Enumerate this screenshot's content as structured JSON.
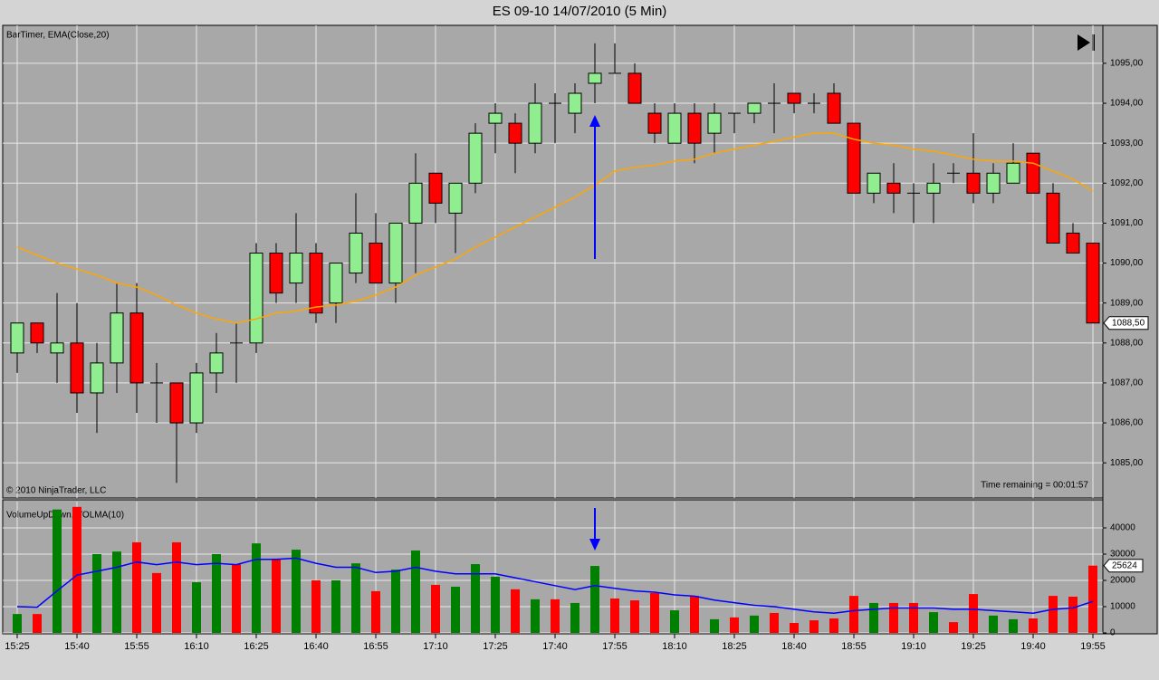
{
  "chart_data": [
    {
      "type": "candlestick",
      "title": "ES 09-10  14/07/2010 (5 Min)",
      "indicator_label": "BarTimer, EMA(Close,20)",
      "copyright": "© 2010 NinjaTrader, LLC",
      "annotation": "Time remaining = 00:01:57",
      "up_color": "#90ee90",
      "down_color": "#ff0000",
      "open": [
        1087.75,
        1088.5,
        1087.75,
        1088,
        1086.75,
        1087.5,
        1088.75,
        1087,
        1087,
        1086,
        1087.25,
        1088,
        1088,
        1090.25,
        1089.5,
        1090.25,
        1089,
        1089.75,
        1090.5,
        1089.5,
        1091,
        1092.25,
        1091.25,
        1092,
        1093.5,
        1093.5,
        1093,
        1094,
        1093.75,
        1094.5,
        1094.75,
        1094.75,
        1093.75,
        1093,
        1093.75,
        1093.25,
        1093.75,
        1093.75,
        1094,
        1094.25,
        1094,
        1094.25,
        1093.5,
        1091.75,
        1092,
        1091.75,
        1091.75,
        1092.25,
        1092.25,
        1091.75,
        1092,
        1092.75,
        1091.75,
        1090.75,
        1090.5
      ],
      "high": [
        1088.5,
        1088.5,
        1089.25,
        1089,
        1088,
        1089.5,
        1089.5,
        1087.5,
        1087,
        1087.5,
        1088.25,
        1088.5,
        1090.5,
        1090.5,
        1091.25,
        1090.5,
        1090,
        1091.75,
        1091.25,
        1091,
        1092.75,
        1092.25,
        1092,
        1093.5,
        1094,
        1093.75,
        1094.5,
        1094.25,
        1094.5,
        1095.5,
        1095.5,
        1095,
        1094,
        1094,
        1094,
        1094,
        1093.75,
        1094,
        1094.5,
        1094.25,
        1094.25,
        1094.5,
        1093.5,
        1092.25,
        1092.5,
        1092,
        1092.5,
        1092.5,
        1093.25,
        1092.5,
        1093,
        1092.75,
        1092,
        1091,
        1090.5
      ],
      "low": [
        1087.25,
        1087.75,
        1087,
        1086.25,
        1085.75,
        1086.75,
        1086.25,
        1086,
        1084.5,
        1085.75,
        1086.75,
        1087,
        1087.75,
        1089,
        1089,
        1088.5,
        1088.5,
        1089.5,
        1089.5,
        1089,
        1089.75,
        1091,
        1090.25,
        1091.75,
        1092.75,
        1092.25,
        1092.75,
        1093,
        1093.25,
        1094,
        1094.75,
        1094,
        1093,
        1093,
        1092.5,
        1092.75,
        1093.25,
        1093.5,
        1093.25,
        1093.75,
        1093.75,
        1093.5,
        1091.75,
        1091.5,
        1091.25,
        1091,
        1091,
        1092,
        1091.5,
        1091.5,
        1092,
        1091.75,
        1090.5,
        1090.25,
        1088.5
      ],
      "close": [
        1088.5,
        1088,
        1088,
        1086.75,
        1087.5,
        1088.75,
        1087,
        1087,
        1086,
        1087.25,
        1087.75,
        1088,
        1090.25,
        1089.25,
        1090.25,
        1088.75,
        1090,
        1090.75,
        1089.5,
        1091,
        1092,
        1091.5,
        1092,
        1093.25,
        1093.75,
        1093,
        1094,
        1094,
        1094.25,
        1094.75,
        1094.75,
        1094,
        1093.25,
        1093.75,
        1093,
        1093.75,
        1093.75,
        1094,
        1094,
        1094,
        1094,
        1093.5,
        1091.75,
        1092.25,
        1091.75,
        1091.75,
        1092,
        1092.25,
        1091.75,
        1092.25,
        1092.5,
        1091.75,
        1090.5,
        1090.25,
        1088.5
      ],
      "last_value_label": "1088,50",
      "series": [
        {
          "color": "#ffa500",
          "values": [
            1090.4,
            1090.2,
            1090,
            1089.85,
            1089.7,
            1089.5,
            1089.4,
            1089.2,
            1088.95,
            1088.75,
            1088.6,
            1088.5,
            1088.6,
            1088.75,
            1088.8,
            1088.9,
            1088.95,
            1089.05,
            1089.2,
            1089.4,
            1089.7,
            1089.9,
            1090.1,
            1090.4,
            1090.65,
            1090.9,
            1091.15,
            1091.4,
            1091.65,
            1091.95,
            1092.3,
            1092.4,
            1092.45,
            1092.55,
            1092.6,
            1092.75,
            1092.85,
            1092.95,
            1093.05,
            1093.15,
            1093.25,
            1093.25,
            1093.1,
            1093,
            1092.95,
            1092.85,
            1092.8,
            1092.7,
            1092.6,
            1092.55,
            1092.55,
            1092.5,
            1092.3,
            1092.1,
            1091.8
          ]
        }
      ],
      "ylim": [
        1084.12,
        1095.95
      ],
      "yticks": [
        {
          "value": 1085,
          "label": "1085,00"
        },
        {
          "value": 1086,
          "label": "1086,00"
        },
        {
          "value": 1087,
          "label": "1087,00"
        },
        {
          "value": 1088,
          "label": "1088,00"
        },
        {
          "value": 1089,
          "label": "1089,00"
        },
        {
          "value": 1090,
          "label": "1090,00"
        },
        {
          "value": 1091,
          "label": "1091,00"
        },
        {
          "value": 1092,
          "label": "1092,00"
        },
        {
          "value": 1093,
          "label": "1093,00"
        },
        {
          "value": 1094,
          "label": "1094,00"
        },
        {
          "value": 1095,
          "label": "1095,00"
        }
      ],
      "grid": true
    },
    {
      "type": "bar",
      "indicator_label": "VolumeUpDown, VOLMA(10)",
      "categories": [
        "15:25",
        null,
        null,
        "15:40",
        null,
        null,
        "15:55",
        null,
        null,
        "16:10",
        null,
        null,
        "16:25",
        null,
        null,
        "16:40",
        null,
        null,
        "16:55",
        null,
        null,
        "17:10",
        null,
        null,
        "17:25",
        null,
        null,
        "17:40",
        null,
        null,
        "17:55",
        null,
        null,
        "18:10",
        null,
        null,
        "18:25",
        null,
        null,
        "18:40",
        null,
        null,
        "18:55",
        null,
        null,
        "19:10",
        null,
        null,
        "19:25",
        null,
        null,
        "19:40",
        null,
        null,
        "19:55"
      ],
      "values": [
        7200,
        7200,
        47000,
        48000,
        30000,
        31000,
        34500,
        22800,
        34500,
        19300,
        30000,
        26200,
        34100,
        28300,
        31700,
        20000,
        20000,
        26500,
        15900,
        24100,
        31400,
        18300,
        17600,
        26200,
        21400,
        16600,
        12800,
        12800,
        11400,
        25500,
        13100,
        12400,
        15200,
        8600,
        14100,
        5200,
        5900,
        6600,
        7600,
        3800,
        4800,
        5500,
        14100,
        11400,
        11400,
        11400,
        7900,
        4100,
        14800,
        6600,
        5200,
        5500,
        14100,
        13800,
        25624
      ],
      "colors": [
        "#008000",
        "#ff0000",
        "#008000",
        "#ff0000",
        "#008000",
        "#008000",
        "#ff0000",
        "#ff0000",
        "#ff0000",
        "#008000",
        "#008000",
        "#ff0000",
        "#008000",
        "#ff0000",
        "#008000",
        "#ff0000",
        "#008000",
        "#008000",
        "#ff0000",
        "#008000",
        "#008000",
        "#ff0000",
        "#008000",
        "#008000",
        "#008000",
        "#ff0000",
        "#008000",
        "#ff0000",
        "#008000",
        "#008000",
        "#ff0000",
        "#ff0000",
        "#ff0000",
        "#008000",
        "#ff0000",
        "#008000",
        "#ff0000",
        "#008000",
        "#ff0000",
        "#ff0000",
        "#ff0000",
        "#ff0000",
        "#ff0000",
        "#008000",
        "#ff0000",
        "#ff0000",
        "#008000",
        "#ff0000",
        "#ff0000",
        "#008000",
        "#008000",
        "#ff0000",
        "#ff0000",
        "#ff0000",
        "#ff0000"
      ],
      "series": [
        {
          "color": "#0000ff",
          "values": [
            10000,
            9800,
            16000,
            22000,
            23500,
            25000,
            27000,
            26000,
            27000,
            26000,
            26500,
            26000,
            28000,
            28000,
            28500,
            26500,
            25000,
            25000,
            23000,
            23500,
            25000,
            23500,
            22500,
            22500,
            22500,
            21000,
            19500,
            18000,
            16500,
            18000,
            17000,
            16000,
            15500,
            14500,
            14000,
            12500,
            11500,
            10500,
            10000,
            9000,
            8000,
            7500,
            8500,
            9000,
            9500,
            9500,
            9500,
            9000,
            9000,
            8500,
            8000,
            7500,
            9000,
            9500,
            12000
          ]
        }
      ],
      "ylim": [
        0,
        50000
      ],
      "yticks": [
        0,
        10000,
        20000,
        30000,
        40000
      ],
      "grid": true
    }
  ]
}
